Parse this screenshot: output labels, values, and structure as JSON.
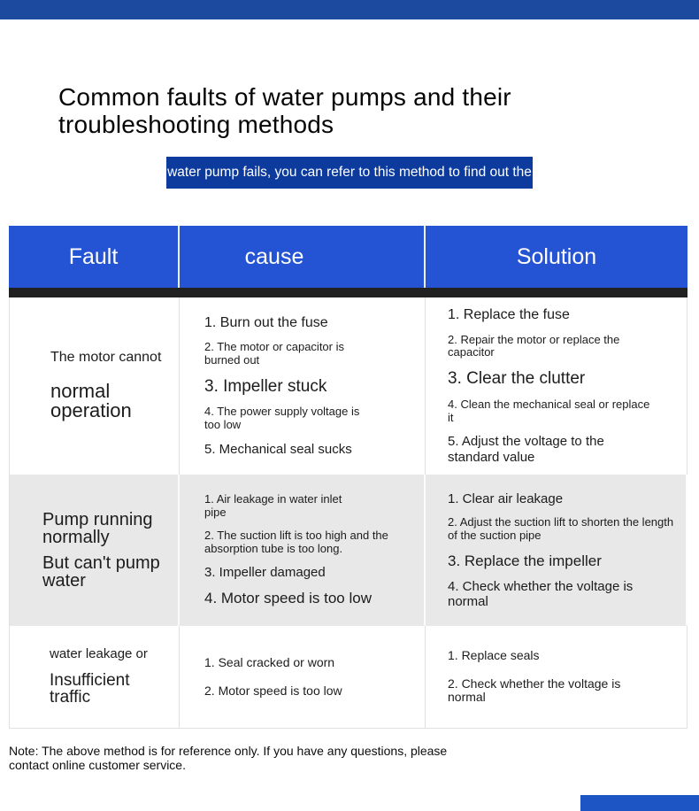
{
  "header": {
    "title": "Common faults of water pumps and their\ntroubleshooting methods",
    "banner_text": "water pump fails, you can refer to this method to find out the"
  },
  "colors": {
    "top_bar": "#1B4A9E",
    "banner_bg": "#0C3B9D",
    "banner_text": "#FFFFFF",
    "table_header_bg": "#2454D3",
    "table_header_text": "#FFFFFF",
    "header_divider": "#212121",
    "row_alt_bg": "#E8E8E8",
    "cell_border": "#E0E0E0",
    "body_text": "#1C1C1C",
    "bottom_bar": "#1D55C4"
  },
  "table": {
    "columns": [
      "Fault",
      "cause",
      "Solution"
    ],
    "rows": [
      {
        "fault": [
          {
            "text": "The motor cannot",
            "size": "16"
          },
          {
            "text": "normal\noperation",
            "size": "22"
          }
        ],
        "cause": [
          {
            "text": "1. Burn out the fuse",
            "size": "16"
          },
          {
            "text": "2. The motor or capacitor is\nburned out",
            "size": "13"
          },
          {
            "text": "3. Impeller stuck",
            "size": "19"
          },
          {
            "text": "4. The power supply voltage is\ntoo low",
            "size": "13"
          },
          {
            "text": "5. Mechanical seal sucks",
            "size": "15"
          }
        ],
        "solution": [
          {
            "text": "1. Replace the fuse",
            "size": "16"
          },
          {
            "text": "2. Repair the motor or replace the\ncapacitor",
            "size": "13"
          },
          {
            "text": "3. Clear the clutter",
            "size": "19"
          },
          {
            "text": "4. Clean the mechanical seal or replace\nit",
            "size": "13"
          },
          {
            "text": "5. Adjust the voltage to the\nstandard value",
            "size": "15"
          }
        ]
      },
      {
        "fault": [
          {
            "text": "Pump running\nnormally",
            "size": "20"
          },
          {
            "text": "But can't pump\nwater",
            "size": "20"
          }
        ],
        "cause": [
          {
            "text": "1. Air leakage in water inlet\npipe",
            "size": "13"
          },
          {
            "text": "2. The suction lift is too high and the\nabsorption tube is too long.",
            "size": "13"
          },
          {
            "text": "3. Impeller damaged",
            "size": "15"
          },
          {
            "text": "4. Motor speed is too low",
            "size": "17"
          }
        ],
        "solution": [
          {
            "text": "1. Clear air leakage",
            "size": "15"
          },
          {
            "text": "2. Adjust the suction lift to shorten the length\nof the suction pipe",
            "size": "13"
          },
          {
            "text": "3. Replace the impeller",
            "size": "17"
          },
          {
            "text": "4. Check whether the voltage is\nnormal",
            "size": "15"
          }
        ]
      },
      {
        "fault": [
          {
            "text": "water leakage or",
            "size": "15"
          },
          {
            "text": "Insufficient\ntraffic",
            "size": "19"
          }
        ],
        "cause": [
          {
            "text": "1. Seal cracked or worn",
            "size": "14"
          },
          {
            "text": "2. Motor speed is too low",
            "size": "14"
          }
        ],
        "solution": [
          {
            "text": "1. Replace seals",
            "size": "14"
          },
          {
            "text": "2. Check whether the voltage is\nnormal",
            "size": "14"
          }
        ]
      }
    ]
  },
  "footer": {
    "note": "Note: The above method is for reference only. If you have any questions, please\ncontact online customer service."
  }
}
